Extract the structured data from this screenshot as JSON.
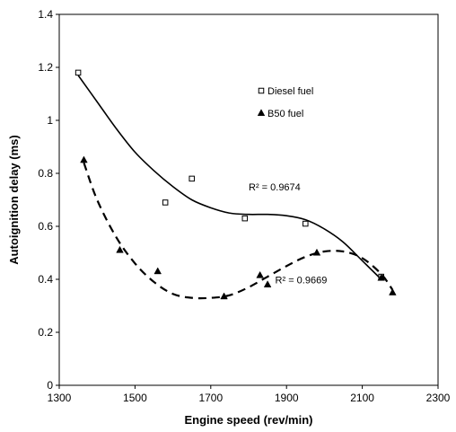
{
  "chart_data": {
    "type": "scatter",
    "title": "",
    "xlabel": "Engine speed (rev/min)",
    "ylabel": "Autoignition delay (ms)",
    "xlim": [
      1300,
      2300
    ],
    "ylim": [
      0,
      1.4
    ],
    "xticks": [
      1300,
      1500,
      1700,
      1900,
      2100,
      2300
    ],
    "yticks": [
      0,
      0.2,
      0.4,
      0.6,
      0.8,
      1,
      1.2,
      1.4
    ],
    "xtick_labels": [
      "1300",
      "1500",
      "1700",
      "1900",
      "2100",
      "2300"
    ],
    "ytick_labels": [
      "0",
      "0.2",
      "0.4",
      "0.6",
      "0.8",
      "1",
      "1.2",
      "1.4"
    ],
    "grid": false,
    "legend_position": "top-right",
    "series": [
      {
        "name": "Diesel fuel",
        "marker": "open-square",
        "trendline": "solid",
        "color": "#000000",
        "x": [
          1350,
          1580,
          1650,
          1790,
          1950,
          2150
        ],
        "y": [
          1.18,
          0.69,
          0.78,
          0.63,
          0.61,
          0.41
        ],
        "trend_x": [
          1350,
          1400,
          1450,
          1500,
          1550,
          1600,
          1650,
          1700,
          1750,
          1800,
          1850,
          1900,
          1950,
          2000,
          2050,
          2100,
          2150
        ],
        "trend_y": [
          1.17,
          1.07,
          0.97,
          0.88,
          0.81,
          0.75,
          0.7,
          0.67,
          0.65,
          0.645,
          0.645,
          0.64,
          0.625,
          0.59,
          0.54,
          0.47,
          0.4
        ]
      },
      {
        "name": "B50 fuel",
        "marker": "filled-triangle",
        "trendline": "dashed",
        "color": "#000000",
        "x": [
          1365,
          1460,
          1560,
          1735,
          1830,
          1850,
          1980,
          2150,
          2180
        ],
        "y": [
          0.85,
          0.51,
          0.43,
          0.335,
          0.415,
          0.38,
          0.5,
          0.405,
          0.35
        ],
        "trend_x": [
          1365,
          1400,
          1450,
          1500,
          1550,
          1600,
          1650,
          1700,
          1750,
          1800,
          1850,
          1900,
          1950,
          2000,
          2050,
          2100,
          2150,
          2180
        ],
        "trend_y": [
          0.84,
          0.7,
          0.56,
          0.46,
          0.39,
          0.345,
          0.33,
          0.33,
          0.34,
          0.37,
          0.41,
          0.45,
          0.485,
          0.505,
          0.505,
          0.48,
          0.42,
          0.36
        ]
      }
    ],
    "annotations": [
      {
        "text": "R² = 0.9674",
        "x": 1800,
        "y": 0.735
      },
      {
        "text": "R² = 0.9669",
        "x": 1870,
        "y": 0.385
      }
    ]
  }
}
